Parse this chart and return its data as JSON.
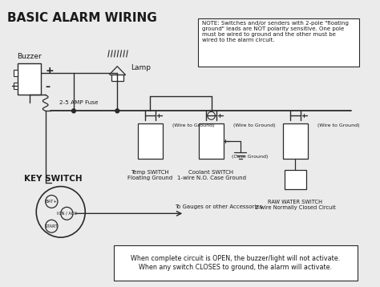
{
  "title": "BASIC ALARM WIRING",
  "bg_color": "#ebebeb",
  "line_color": "#2a2a2a",
  "text_color": "#1a1a1a",
  "note_text": "NOTE: Switches and/or senders with 2-pole \"floating\nground\" leads are NOT polarity sensitive. One pole\nmust be wired to ground and the other must be\nwired to the alarm circuit.",
  "bottom_text": "When complete circuit is OPEN, the buzzer/light will not activate.\nWhen any switch CLOSES to ground, the alarm will activate.",
  "labels": {
    "buzzer": "Buzzer",
    "lamp": "Lamp",
    "plus": "+",
    "minus": "–",
    "fuse": "2-5 AMP Fuse",
    "key_switch": "KEY SWITCH",
    "bat": "BAT+",
    "ign": "IGN / ACC",
    "start": "START",
    "accessories": "To Gauges or other Accessories",
    "wire_to_ground1": "(Wire to Ground)",
    "wire_to_ground2": "(Wire to Ground)",
    "case_ground": "(Case Ground)",
    "temp_switch": "Temp SWITCH\nFloating Ground",
    "coolant_switch": "Coolant SWITCH\n1-wire N.O. Case Ground",
    "raw_water": "RAW WATER SWITCH\n2-wire Normally Closed Circuit"
  }
}
